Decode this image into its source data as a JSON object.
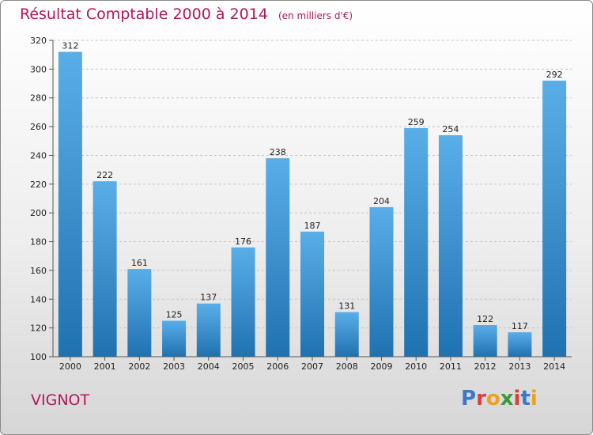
{
  "title": "Résultat Comptable 2000 à 2014",
  "unit": "(en milliers d'€)",
  "commune": "VIGNOT",
  "logo": {
    "text": "Proxiti",
    "colors": [
      "#3a78c8",
      "#e03a3a",
      "#f0a020",
      "#3a9a3a",
      "#e03a3a",
      "#3a78c8",
      "#f0a020"
    ]
  },
  "colors": {
    "accent": "#b0165e",
    "bar_light": "#5aaee8",
    "bar_dark": "#1f72b0"
  },
  "chart_data": {
    "type": "bar",
    "title": "Résultat Comptable 2000 à 2014",
    "xlabel": "",
    "ylabel": "",
    "ylim": [
      100,
      320
    ],
    "yticks": [
      100,
      120,
      140,
      160,
      180,
      200,
      220,
      240,
      260,
      280,
      300,
      320
    ],
    "categories": [
      "2000",
      "2001",
      "2002",
      "2003",
      "2004",
      "2005",
      "2006",
      "2007",
      "2008",
      "2009",
      "2010",
      "2011",
      "2012",
      "2013",
      "2014"
    ],
    "values": [
      312,
      222,
      161,
      125,
      137,
      176,
      238,
      187,
      131,
      204,
      259,
      254,
      122,
      117,
      292
    ]
  }
}
